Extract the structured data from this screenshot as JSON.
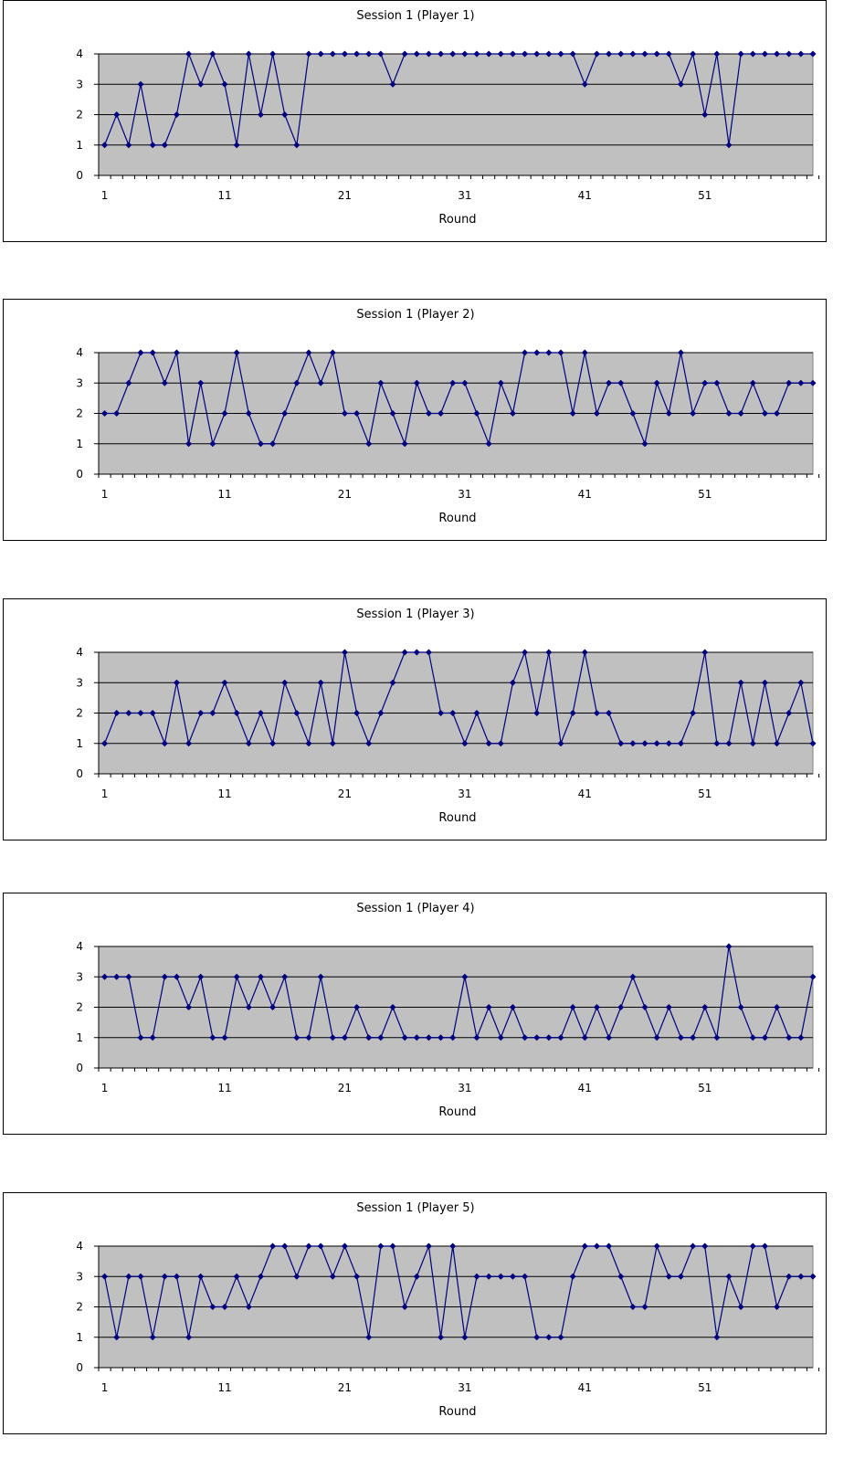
{
  "chart_data": [
    {
      "type": "line",
      "title": "Session 1 (Player 1)",
      "xlabel": "Round",
      "ylabel": "",
      "ylim": [
        0,
        4
      ],
      "xlim": [
        1,
        60
      ],
      "yticks": [
        0,
        1,
        2,
        3,
        4
      ],
      "xtick_labels": [
        1,
        11,
        21,
        31,
        41,
        51
      ],
      "grid": true,
      "colors": {
        "line": "#000080",
        "plot_bg": "#c0c0c0"
      },
      "series": [
        {
          "values": [
            1,
            2,
            1,
            3,
            1,
            1,
            2,
            4,
            3,
            4,
            3,
            1,
            4,
            2,
            4,
            2,
            1,
            4,
            4,
            4,
            4,
            4,
            4,
            4,
            3,
            4,
            4,
            4,
            4,
            4,
            4,
            4,
            4,
            4,
            4,
            4,
            4,
            4,
            4,
            4,
            3,
            4,
            4,
            4,
            4,
            4,
            4,
            4,
            3,
            4,
            2,
            4,
            1,
            4,
            4,
            4,
            4,
            4,
            4,
            4
          ]
        }
      ]
    },
    {
      "type": "line",
      "title": "Session 1 (Player 2)",
      "xlabel": "Round",
      "ylabel": "",
      "ylim": [
        0,
        4
      ],
      "xlim": [
        1,
        60
      ],
      "yticks": [
        0,
        1,
        2,
        3,
        4
      ],
      "xtick_labels": [
        1,
        11,
        21,
        31,
        41,
        51
      ],
      "grid": true,
      "colors": {
        "line": "#000080",
        "plot_bg": "#c0c0c0"
      },
      "series": [
        {
          "values": [
            2,
            2,
            3,
            4,
            4,
            3,
            4,
            1,
            3,
            1,
            2,
            4,
            2,
            1,
            1,
            2,
            3,
            4,
            3,
            4,
            2,
            2,
            1,
            3,
            2,
            1,
            3,
            2,
            2,
            3,
            3,
            2,
            1,
            3,
            2,
            4,
            4,
            4,
            4,
            2,
            4,
            2,
            3,
            3,
            2,
            1,
            3,
            2,
            4,
            2,
            3,
            3,
            2,
            2,
            3,
            2,
            2,
            3,
            3,
            3
          ]
        }
      ]
    },
    {
      "type": "line",
      "title": "Session 1 (Player 3)",
      "xlabel": "Round",
      "ylabel": "",
      "ylim": [
        0,
        4
      ],
      "xlim": [
        1,
        60
      ],
      "yticks": [
        0,
        1,
        2,
        3,
        4
      ],
      "xtick_labels": [
        1,
        11,
        21,
        31,
        41,
        51
      ],
      "grid": true,
      "colors": {
        "line": "#000080",
        "plot_bg": "#c0c0c0"
      },
      "series": [
        {
          "values": [
            1,
            2,
            2,
            2,
            2,
            1,
            3,
            1,
            2,
            2,
            3,
            2,
            1,
            2,
            1,
            3,
            2,
            1,
            3,
            1,
            4,
            2,
            1,
            2,
            3,
            4,
            4,
            4,
            2,
            2,
            1,
            2,
            1,
            1,
            3,
            4,
            2,
            4,
            1,
            2,
            4,
            2,
            2,
            1,
            1,
            1,
            1,
            1,
            1,
            2,
            4,
            1,
            1,
            3,
            1,
            3,
            1,
            2,
            3,
            1
          ]
        }
      ]
    },
    {
      "type": "line",
      "title": "Session 1 (Player 4)",
      "xlabel": "Round",
      "ylabel": "",
      "ylim": [
        0,
        4
      ],
      "xlim": [
        1,
        60
      ],
      "yticks": [
        0,
        1,
        2,
        3,
        4
      ],
      "xtick_labels": [
        1,
        11,
        21,
        31,
        41,
        51
      ],
      "grid": true,
      "colors": {
        "line": "#000080",
        "plot_bg": "#c0c0c0"
      },
      "series": [
        {
          "values": [
            3,
            3,
            3,
            1,
            1,
            3,
            3,
            2,
            3,
            1,
            1,
            3,
            2,
            3,
            2,
            3,
            1,
            1,
            3,
            1,
            1,
            2,
            1,
            1,
            2,
            1,
            1,
            1,
            1,
            1,
            3,
            1,
            2,
            1,
            2,
            1,
            1,
            1,
            1,
            2,
            1,
            2,
            1,
            2,
            3,
            2,
            1,
            2,
            1,
            1,
            2,
            1,
            4,
            2,
            1,
            1,
            2,
            1,
            1,
            3
          ]
        }
      ]
    },
    {
      "type": "line",
      "title": "Session 1 (Player 5)",
      "xlabel": "Round",
      "ylabel": "",
      "ylim": [
        0,
        4
      ],
      "xlim": [
        1,
        60
      ],
      "yticks": [
        0,
        1,
        2,
        3,
        4
      ],
      "xtick_labels": [
        1,
        11,
        21,
        31,
        41,
        51
      ],
      "grid": true,
      "colors": {
        "line": "#000080",
        "plot_bg": "#c0c0c0"
      },
      "series": [
        {
          "values": [
            3,
            1,
            3,
            3,
            1,
            3,
            3,
            1,
            3,
            2,
            2,
            3,
            2,
            3,
            4,
            4,
            3,
            4,
            4,
            3,
            4,
            3,
            1,
            4,
            4,
            2,
            3,
            4,
            1,
            4,
            1,
            3,
            3,
            3,
            3,
            3,
            1,
            1,
            1,
            3,
            4,
            4,
            4,
            3,
            2,
            2,
            4,
            3,
            3,
            4,
            4,
            1,
            3,
            2,
            4,
            4,
            2,
            3,
            3,
            3
          ]
        }
      ]
    }
  ]
}
